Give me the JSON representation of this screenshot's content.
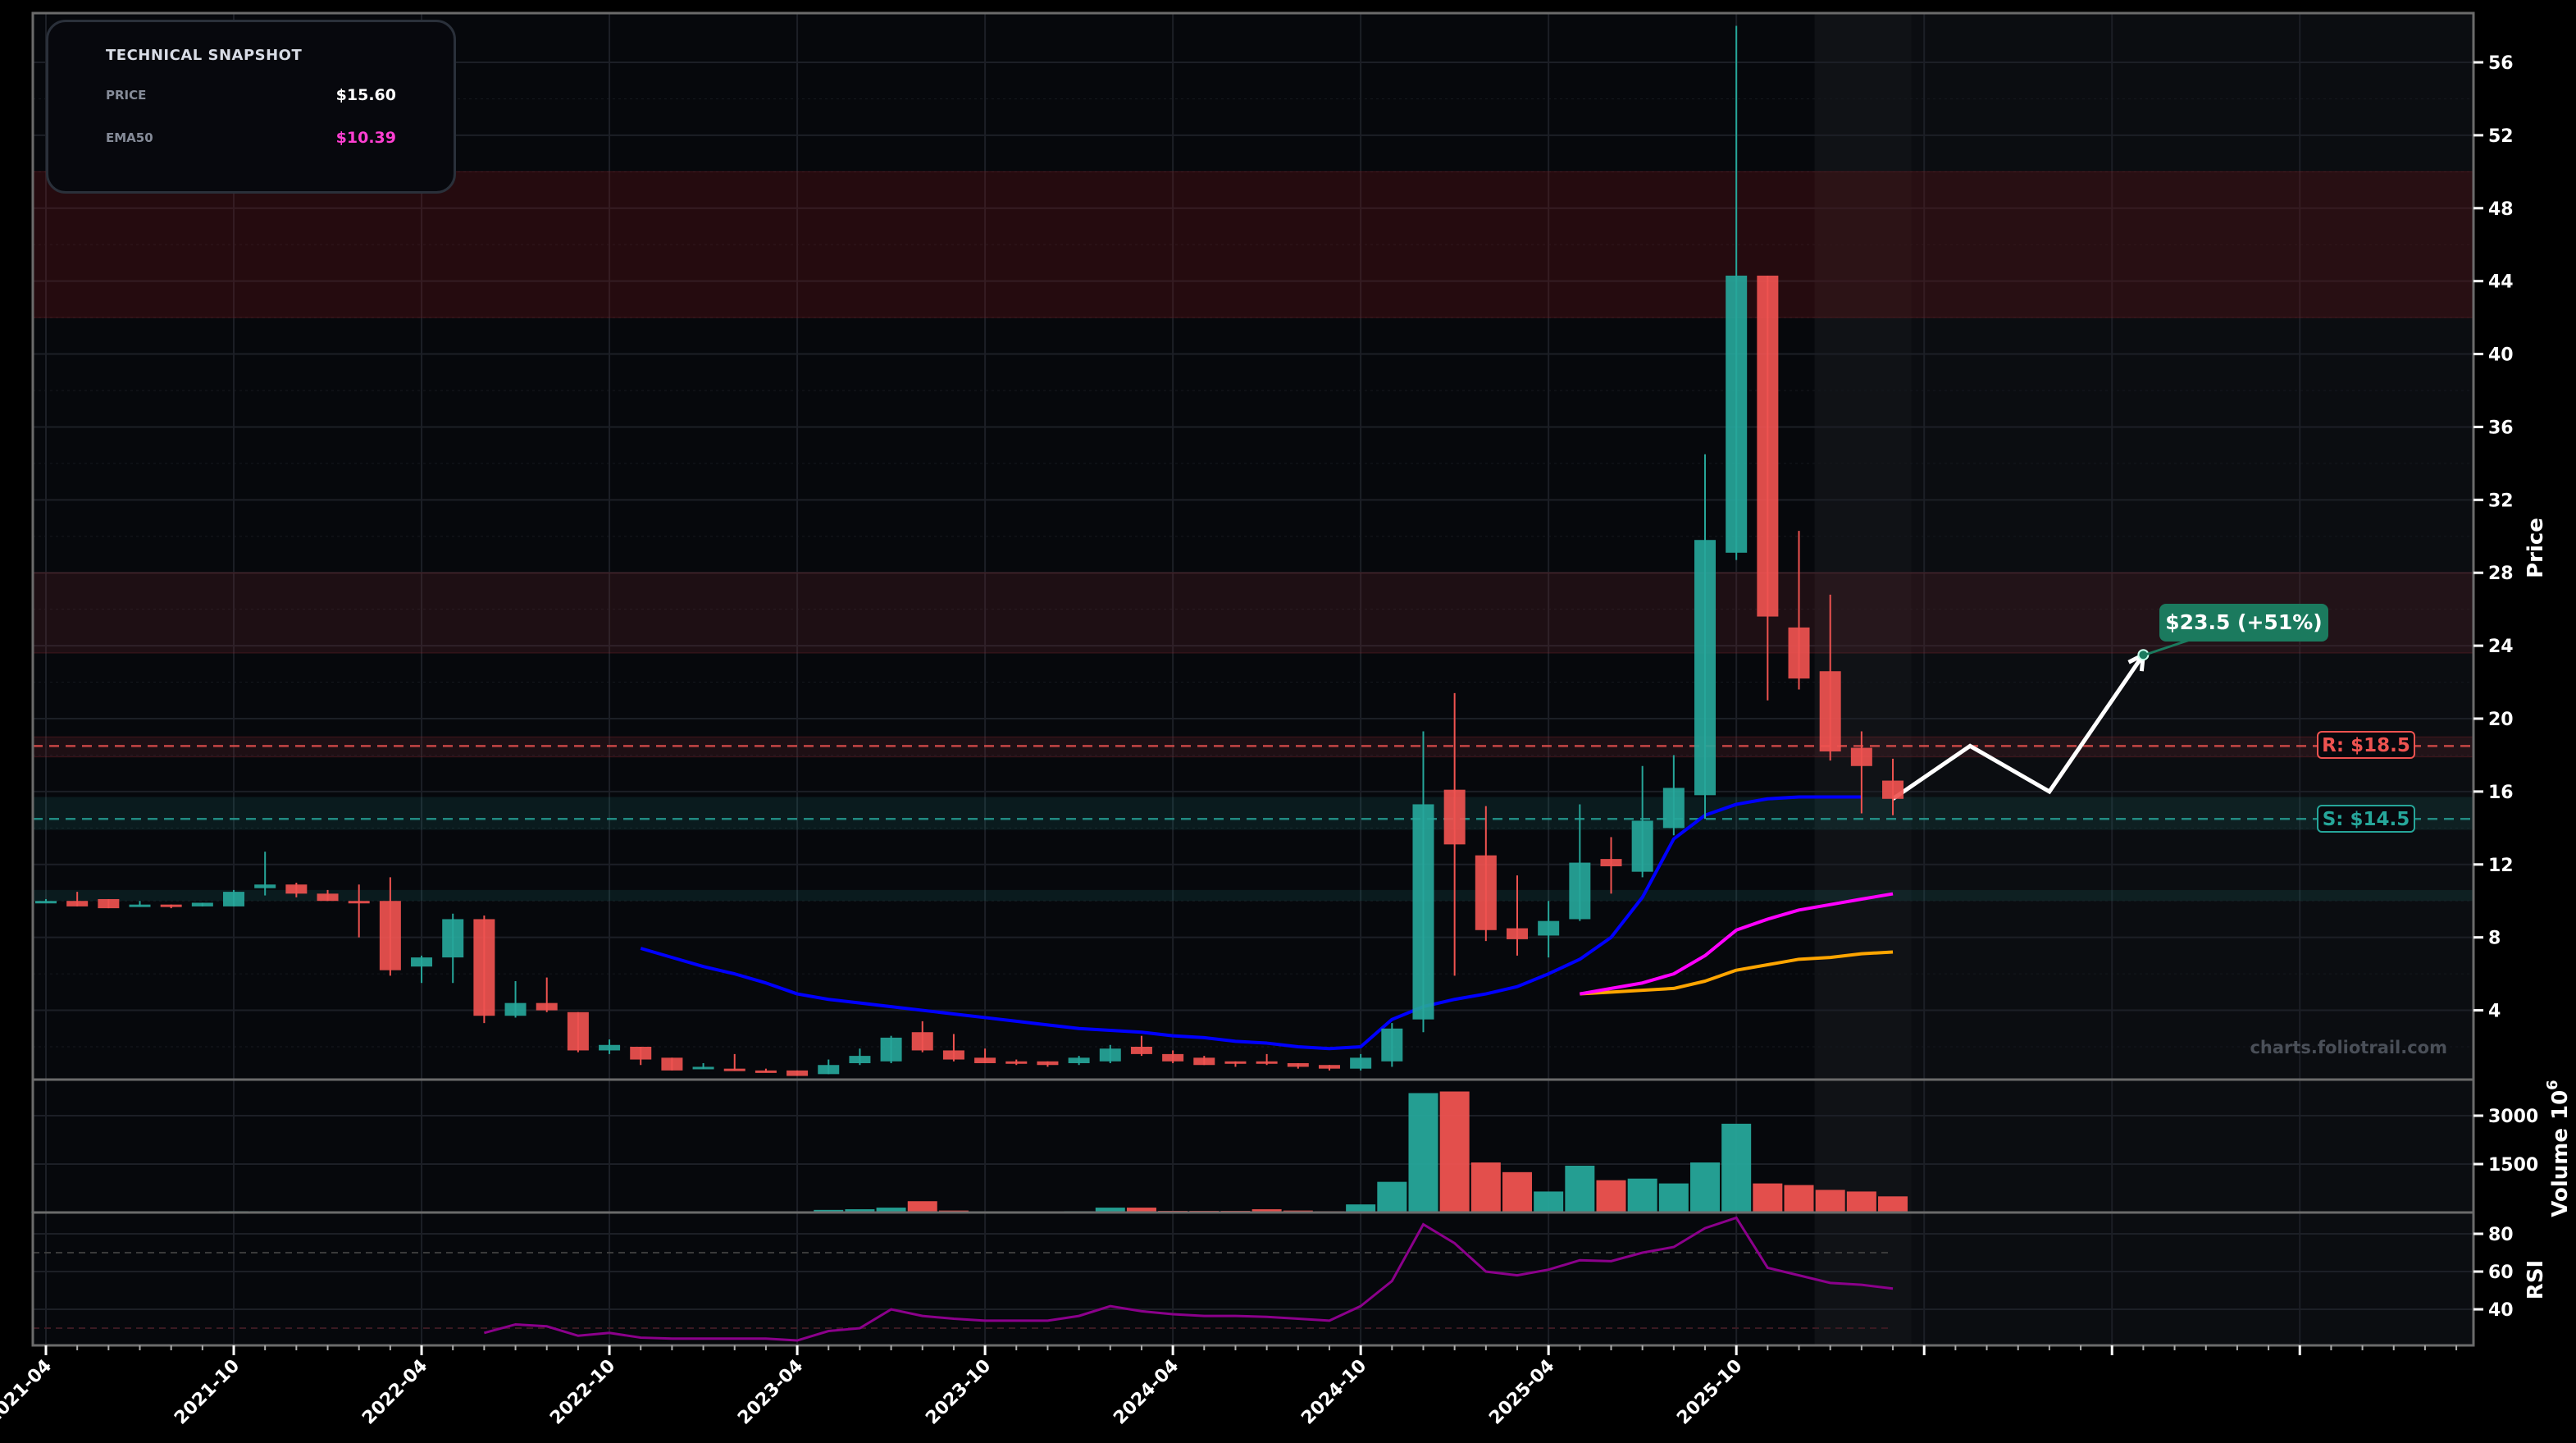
{
  "snapshot": {
    "title": "TECHNICAL SNAPSHOT",
    "rows": [
      {
        "label": "PRICE",
        "value": "$15.60",
        "color": "#ffffff"
      },
      {
        "label": "EMA50",
        "value": "$10.39",
        "color": "#ff3fd2"
      }
    ]
  },
  "watermark": "charts.foliotrail.com",
  "colors": {
    "up": "#26a69a",
    "down": "#ef5350",
    "ema_fast": "#0000ff",
    "ema50": "#ff00ff",
    "ema_slow": "#ffa500",
    "target": "#1b7a5e",
    "rsi": "#8b008b",
    "background": "#06080c"
  },
  "chart_data": {
    "type": "candlestick",
    "price_axis": {
      "label": "Price",
      "ylim": [
        0.2,
        58.7
      ],
      "ticks": [
        4,
        8,
        12,
        16,
        20,
        24,
        28,
        32,
        36,
        40,
        44,
        48,
        52,
        56
      ]
    },
    "x_ticks": [
      "2021-04",
      "2021-10",
      "2022-04",
      "2022-10",
      "2023-04",
      "2023-10",
      "2024-04",
      "2024-10",
      "2025-04",
      "2025-10",
      "2026-04",
      "2026-10",
      "2027-04"
    ],
    "x_tick_labels": [
      "2021-04",
      "2021-10",
      "2022-04",
      "2022-10",
      "2023-04",
      "2023-10",
      "2024-04",
      "2024-10",
      "2025-04",
      "2025-10",
      "",
      "",
      ""
    ],
    "candles": {
      "start": "2021-04",
      "ohlc": [
        [
          9.9,
          10.1,
          9.9,
          10.0
        ],
        [
          10.0,
          10.5,
          9.7,
          9.7
        ],
        [
          10.1,
          10.1,
          9.6,
          9.6
        ],
        [
          9.7,
          10.0,
          9.7,
          9.8
        ],
        [
          9.8,
          9.8,
          9.6,
          9.7
        ],
        [
          9.7,
          9.9,
          9.7,
          9.9
        ],
        [
          9.7,
          10.6,
          9.7,
          10.5
        ],
        [
          10.7,
          12.7,
          10.3,
          10.9
        ],
        [
          10.9,
          11.0,
          10.2,
          10.4
        ],
        [
          10.4,
          10.6,
          10.0,
          10.0
        ],
        [
          10.0,
          10.9,
          8.0,
          9.9
        ],
        [
          10.0,
          11.3,
          5.9,
          6.2
        ],
        [
          6.4,
          7.0,
          5.5,
          6.9
        ],
        [
          6.9,
          9.3,
          5.5,
          9.0
        ],
        [
          9.0,
          9.2,
          3.3,
          3.7
        ],
        [
          3.7,
          5.6,
          3.6,
          4.4
        ],
        [
          4.4,
          5.8,
          3.9,
          4.0
        ],
        [
          3.9,
          3.9,
          1.7,
          1.8
        ],
        [
          1.8,
          2.4,
          1.6,
          2.1
        ],
        [
          2.0,
          2.0,
          1.0,
          1.3
        ],
        [
          1.4,
          1.4,
          0.7,
          0.7
        ],
        [
          0.8,
          1.1,
          0.8,
          0.9
        ],
        [
          0.8,
          1.6,
          0.7,
          0.7
        ],
        [
          0.7,
          0.8,
          0.6,
          0.6
        ],
        [
          0.7,
          0.7,
          0.4,
          0.4
        ],
        [
          0.5,
          1.3,
          0.5,
          1.0
        ],
        [
          1.1,
          1.9,
          1.0,
          1.5
        ],
        [
          1.2,
          2.6,
          1.1,
          2.5
        ],
        [
          2.8,
          3.4,
          1.7,
          1.8
        ],
        [
          1.8,
          2.7,
          1.2,
          1.3
        ],
        [
          1.4,
          1.9,
          1.1,
          1.1
        ],
        [
          1.2,
          1.3,
          1.0,
          1.1
        ],
        [
          1.2,
          1.2,
          0.9,
          1.0
        ],
        [
          1.1,
          1.5,
          1.0,
          1.4
        ],
        [
          1.2,
          2.1,
          1.1,
          1.9
        ],
        [
          2.0,
          2.6,
          1.5,
          1.6
        ],
        [
          1.6,
          1.8,
          1.1,
          1.2
        ],
        [
          1.4,
          1.5,
          1.0,
          1.0
        ],
        [
          1.2,
          1.2,
          0.9,
          1.1
        ],
        [
          1.2,
          1.6,
          1.0,
          1.1
        ],
        [
          1.1,
          1.1,
          0.8,
          0.9
        ],
        [
          1.0,
          1.0,
          0.7,
          0.8
        ],
        [
          0.8,
          1.6,
          0.7,
          1.4
        ],
        [
          1.2,
          3.3,
          0.9,
          3.0
        ],
        [
          3.5,
          19.3,
          2.8,
          15.3
        ],
        [
          16.1,
          21.4,
          5.9,
          13.1
        ],
        [
          12.5,
          15.2,
          7.8,
          8.4
        ],
        [
          8.5,
          11.4,
          7.0,
          7.9
        ],
        [
          8.1,
          10.0,
          6.9,
          8.9
        ],
        [
          9.0,
          15.3,
          8.9,
          12.1
        ],
        [
          12.3,
          13.5,
          10.4,
          11.9
        ],
        [
          11.6,
          17.4,
          11.3,
          14.4
        ],
        [
          14.0,
          18.0,
          13.6,
          16.2
        ],
        [
          15.8,
          34.5,
          14.5,
          29.8
        ],
        [
          29.1,
          58.0,
          28.7,
          44.3
        ],
        [
          44.3,
          44.3,
          21.0,
          25.6
        ],
        [
          25.0,
          30.3,
          21.6,
          22.2
        ],
        [
          22.6,
          26.8,
          17.7,
          18.2
        ],
        [
          18.4,
          19.3,
          14.8,
          17.4
        ],
        [
          16.6,
          17.8,
          14.7,
          15.6
        ]
      ]
    },
    "ema_fast": {
      "start": "2022-11",
      "values": [
        7.4,
        6.9,
        6.4,
        6.0,
        5.5,
        4.9,
        4.6,
        4.4,
        4.2,
        4.0,
        3.8,
        3.6,
        3.4,
        3.2,
        3.0,
        2.9,
        2.8,
        2.6,
        2.5,
        2.3,
        2.2,
        2.0,
        1.9,
        2.0,
        3.5,
        4.2,
        4.6,
        4.9,
        5.3,
        6.0,
        6.8,
        8.0,
        10.2,
        13.4,
        14.7,
        15.3,
        15.6,
        15.7,
        15.7,
        15.7
      ]
    },
    "ema50": {
      "start": "2025-05",
      "values": [
        4.9,
        5.2,
        5.5,
        6.0,
        7.0,
        8.4,
        9.0,
        9.5,
        9.8,
        10.1,
        10.39
      ]
    },
    "ema_slow": {
      "start": "2025-05",
      "values": [
        4.9,
        5.0,
        5.1,
        5.2,
        5.6,
        6.2,
        6.5,
        6.8,
        6.9,
        7.1,
        7.2
      ]
    },
    "levels": {
      "resistance": {
        "value": 18.5,
        "label": "R: $18.5"
      },
      "support": {
        "value": 14.5,
        "label": "S: $14.5"
      },
      "red_zones": [
        [
          42,
          50
        ],
        [
          23.6,
          28
        ],
        [
          17.9,
          19.0
        ]
      ],
      "green_zones": [
        [
          13.9,
          15.7
        ],
        [
          10.0,
          10.6
        ]
      ]
    },
    "projection": {
      "points": [
        [
          "2026-03",
          15.6
        ],
        [
          "2026-05-15",
          18.5
        ],
        [
          "2026-08",
          16.0
        ],
        [
          "2026-11",
          23.5
        ]
      ],
      "target_label": "$23.5 (+51%)"
    },
    "volume": {
      "label": "Volume",
      "multiplier": "10",
      "exponent": "6",
      "ylim": [
        0,
        4119
      ],
      "ticks": [
        1500,
        3000
      ],
      "values": [
        10,
        10,
        10,
        10,
        10,
        10,
        40,
        40,
        10,
        10,
        10,
        10,
        10,
        10,
        10,
        10,
        10,
        20,
        10,
        10,
        10,
        10,
        30,
        10,
        20,
        80,
        100,
        150,
        350,
        60,
        20,
        20,
        20,
        40,
        150,
        150,
        50,
        50,
        50,
        100,
        60,
        40,
        250,
        950,
        3700,
        3750,
        1550,
        1250,
        650,
        1450,
        1000,
        1050,
        900,
        1550,
        2750,
        900,
        850,
        700,
        650,
        500
      ]
    },
    "rsi": {
      "label": "RSI",
      "ylim": [
        20.9,
        91.3
      ],
      "ticks": [
        40,
        60,
        80
      ],
      "guides": [
        70,
        30
      ],
      "start": "2022-06",
      "values": [
        27.5,
        32,
        31,
        26,
        27.5,
        25,
        24.5,
        24.5,
        24.5,
        24.5,
        23.5,
        28.5,
        30,
        40,
        36.5,
        35,
        34,
        34,
        34,
        36.5,
        41.7,
        39,
        37.4,
        36.5,
        36.5,
        36,
        35,
        34,
        41.7,
        55,
        85,
        75,
        60,
        58,
        61,
        66,
        65.5,
        70,
        73,
        83,
        88.5,
        62,
        58,
        54,
        53,
        51
      ]
    }
  }
}
